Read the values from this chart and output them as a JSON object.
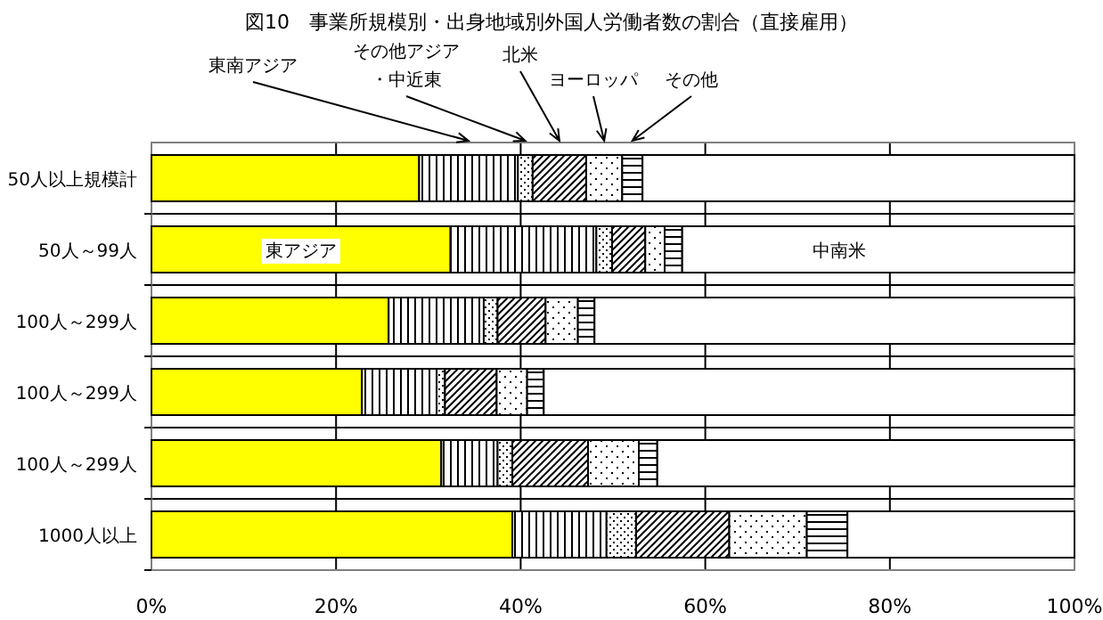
{
  "chart_data": {
    "type": "bar",
    "orientation": "horizontal",
    "stacked": true,
    "title": "図10　事業所規模別・出身地域別外国人労働者数の割合（直接雇用）",
    "categories": [
      "50人以上規模計",
      "50人～99人",
      "100人～299人",
      "100人～299人",
      "100人～299人",
      "1000人以上"
    ],
    "series": [
      {
        "name": "東アジア",
        "color": "#ffff00",
        "values": [
          29.0,
          32.4,
          25.7,
          22.8,
          31.4,
          39.1
        ]
      },
      {
        "name": "東南アジア",
        "color": "#000000",
        "values": [
          10.7,
          15.8,
          10.3,
          8.1,
          6.1,
          10.2
        ]
      },
      {
        "name": "その他アジア・中近東",
        "color": "#000000",
        "values": [
          1.6,
          1.7,
          1.5,
          0.9,
          1.6,
          3.2
        ]
      },
      {
        "name": "北米",
        "color": "#000000",
        "values": [
          5.8,
          3.6,
          5.2,
          5.6,
          8.2,
          10.1
        ]
      },
      {
        "name": "ヨーロッパ",
        "color": "#000000",
        "values": [
          3.9,
          2.1,
          3.5,
          3.3,
          5.5,
          8.4
        ]
      },
      {
        "name": "その他",
        "color": "#000000",
        "values": [
          2.2,
          1.9,
          1.8,
          1.8,
          2.0,
          4.4
        ]
      },
      {
        "name": "中南米",
        "color": "#ffffff",
        "values": [
          46.8,
          42.5,
          52.0,
          57.5,
          45.2,
          24.6
        ]
      }
    ],
    "xlim": [
      0,
      100
    ],
    "xticks": [
      {
        "value": 0,
        "label": "0%"
      },
      {
        "value": 20,
        "label": "20%"
      },
      {
        "value": 40,
        "label": "40%"
      },
      {
        "value": 60,
        "label": "60%"
      },
      {
        "value": 80,
        "label": "80%"
      },
      {
        "value": 100,
        "label": "100%"
      }
    ],
    "grid": true,
    "legend": false
  }
}
